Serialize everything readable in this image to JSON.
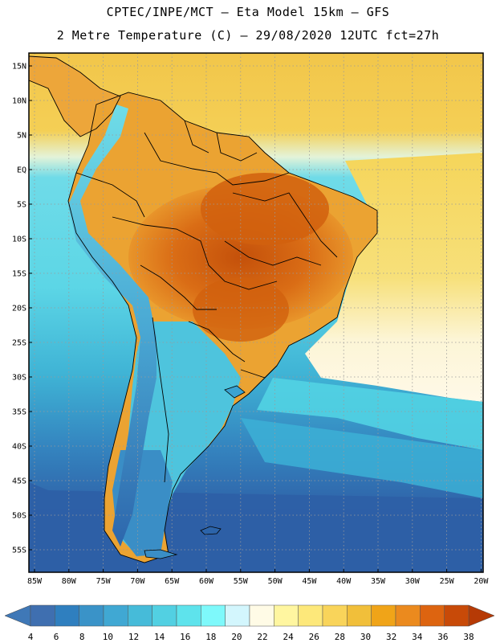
{
  "header": {
    "line1": "CPTEC/INPE/MCT –  Eta Model 15km – GFS",
    "line2": "2 Metre Temperature (C) – 29/08/2020 12UTC fct=27h"
  },
  "map": {
    "lat_labels": [
      "15N",
      "10N",
      "5N",
      "EQ",
      "5S",
      "10S",
      "15S",
      "20S",
      "25S",
      "30S",
      "35S",
      "40S",
      "45S",
      "50S",
      "55S"
    ],
    "lon_labels": [
      "85W",
      "80W",
      "75W",
      "70W",
      "65W",
      "60W",
      "55W",
      "50W",
      "45W",
      "40W",
      "35W",
      "30W",
      "25W",
      "20W"
    ]
  },
  "colorbar": {
    "labels": [
      "4",
      "6",
      "8",
      "10",
      "12",
      "14",
      "16",
      "18",
      "20",
      "22",
      "24",
      "26",
      "28",
      "30",
      "32",
      "34",
      "36",
      "38"
    ],
    "colors": [
      "#3f6fb0",
      "#2f7fbf",
      "#3a93c8",
      "#40a8d3",
      "#46bbd9",
      "#52d0e2",
      "#5ee3ec",
      "#7ef9fb",
      "#d3f6fd",
      "#fffbe6",
      "#fff6a0",
      "#fde87a",
      "#f9d45a",
      "#f1bf3a",
      "#f0a418",
      "#eb8a1e",
      "#dd6410",
      "#c84a08"
    ],
    "left_arrow_color": "#3f78b7",
    "right_arrow_color": "#b63a05"
  },
  "palette": {
    "ocean_north": "#f4d05a",
    "ocean_mid": "#50d2e2",
    "ocean_south": "#2a5ea8",
    "land_hot": "#c85a10",
    "land_warm": "#e8a02a",
    "andes": "#3c88c8"
  }
}
